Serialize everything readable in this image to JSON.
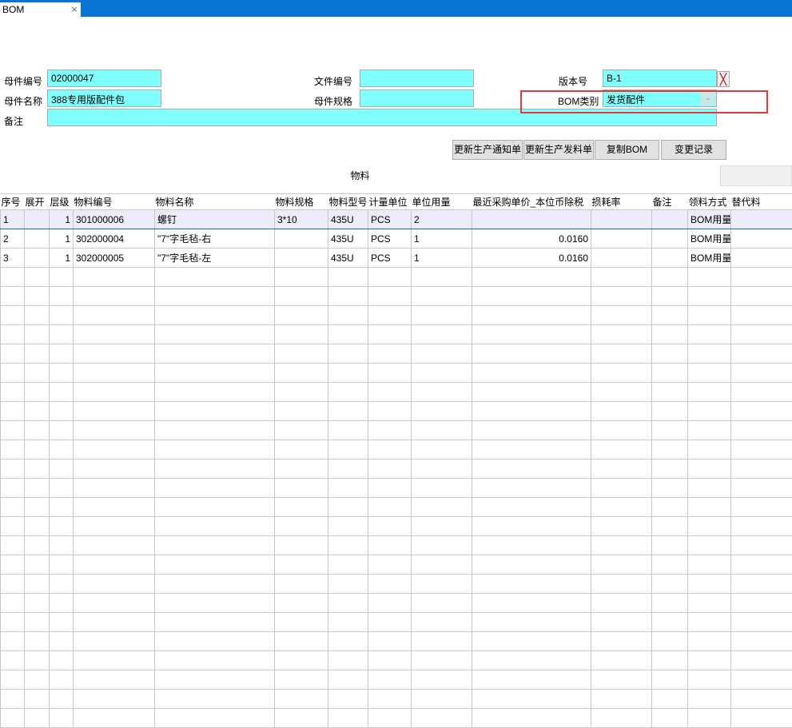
{
  "window": {
    "tab_title": "BOM",
    "close_icon": "×"
  },
  "form": {
    "parent_code_label": "母件编号",
    "parent_code": "02000047",
    "parent_name_label": "母件名称",
    "parent_name": "388专用版配件包",
    "remark_label": "备注",
    "remark": "",
    "doc_no_label": "文件编号",
    "doc_no": "",
    "parent_spec_label": "母件规格",
    "parent_spec": "",
    "version_label": "版本号",
    "version": "B-1",
    "bom_type_label": "BOM类别",
    "bom_type": "发货配件"
  },
  "buttons": {
    "update_notice": "更新生产通知单",
    "update_issue": "更新生产发料单",
    "copy_bom": "复制BOM",
    "change_log": "变更记录"
  },
  "section_title": "物料",
  "table": {
    "columns": [
      "序号",
      "展开",
      "层级",
      "物料编号",
      "物料名称",
      "物料规格",
      "物料型号",
      "计量单位",
      "单位用量",
      "最近采购单价_本位币除税",
      "损耗率",
      "备注",
      "领料方式",
      "替代料"
    ],
    "rows": [
      [
        "1",
        "",
        "1",
        "301000006",
        "螺钉",
        "3*10",
        "435U",
        "PCS",
        "2",
        "",
        "",
        "",
        "BOM用量",
        ""
      ],
      [
        "2",
        "",
        "1",
        "302000004",
        "\"7\"字毛毡-右",
        "",
        "435U",
        "PCS",
        "1",
        "0.0160",
        "",
        "",
        "BOM用量",
        ""
      ],
      [
        "3",
        "",
        "1",
        "302000005",
        "\"7\"字毛毡-左",
        "",
        "435U",
        "PCS",
        "1",
        "0.0160",
        "",
        "",
        "BOM用量",
        ""
      ]
    ]
  },
  "colors": {
    "title_bar": "#0a74d4",
    "field_bg": "#80ffff",
    "highlight": "#e53935"
  }
}
